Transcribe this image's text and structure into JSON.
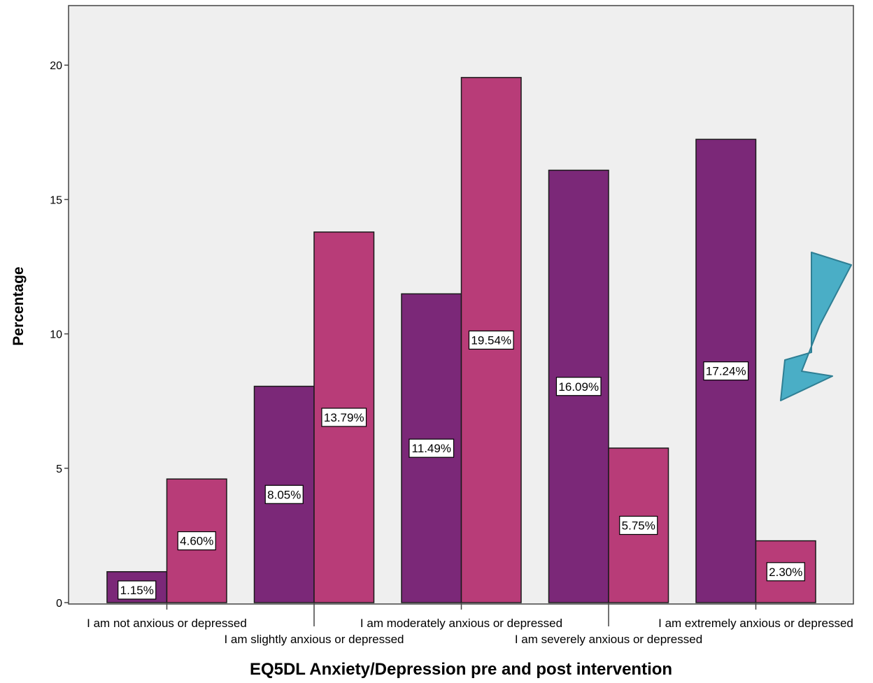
{
  "chart_data": {
    "type": "bar",
    "title": "",
    "xlabel": "EQ5DL Anxiety/Depression pre and post intervention",
    "ylabel": "Percentage",
    "ylim": [
      0,
      22
    ],
    "yticks": [
      "0",
      "5",
      "10",
      "15",
      "20"
    ],
    "categories": [
      "I am not anxious or depressed",
      "I am slightly anxious or depressed",
      "I am moderately anxious or depressed",
      "I am severely anxious or depressed",
      "I am extremely anxious or depressed"
    ],
    "series": [
      {
        "values": [
          1.15,
          8.05,
          11.49,
          16.09,
          17.24
        ],
        "labels": [
          "1.15%",
          "8.05%",
          "11.49%",
          "16.09%",
          "17.24%"
        ],
        "color": "#7b2878"
      },
      {
        "values": [
          4.6,
          13.79,
          19.54,
          5.75,
          2.3
        ],
        "labels": [
          "4.60%",
          "13.79%",
          "19.54%",
          "5.75%",
          "2.30%"
        ],
        "color": "#b83c78"
      }
    ],
    "plot_background": "#efefef",
    "grid": false,
    "legend": "none",
    "annotation": {
      "icon": "arrow-down-left-icon",
      "color": "#4aaec6",
      "points_to": "I am extremely anxious or depressed"
    }
  }
}
